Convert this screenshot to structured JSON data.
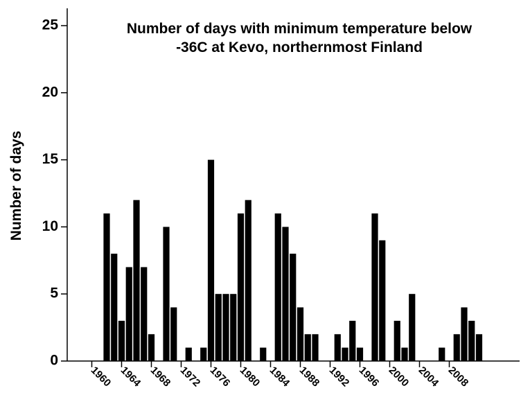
{
  "chart_data": {
    "type": "bar",
    "title": "Number of days with minimum temperature below -36C at Kevo, northernmost Finland",
    "title_lines": [
      "Number of days with minimum temperature below",
      "-36C at Kevo, northernmost Finland"
    ],
    "ylabel": "Number of days",
    "categories": [
      "1960",
      null,
      null,
      null,
      "1964",
      null,
      null,
      null,
      "1968",
      null,
      null,
      null,
      "1972",
      null,
      null,
      null,
      "1976",
      null,
      null,
      null,
      "1980",
      null,
      null,
      null,
      "1984",
      null,
      null,
      null,
      "1988",
      null,
      null,
      null,
      "1992",
      null,
      null,
      null,
      "1996",
      null,
      null,
      null,
      "2000",
      null,
      null,
      null,
      "2004",
      null,
      null,
      null,
      "2008",
      null,
      null,
      null,
      null
    ],
    "values": [
      0,
      0,
      11,
      8,
      3,
      7,
      12,
      7,
      2,
      0,
      10,
      4,
      0,
      1,
      0,
      1,
      15,
      5,
      5,
      5,
      11,
      12,
      0,
      1,
      0,
      11,
      10,
      8,
      4,
      2,
      2,
      0,
      0,
      2,
      1,
      3,
      1,
      0,
      11,
      9,
      0,
      3,
      1,
      5,
      0,
      0,
      0,
      1,
      0,
      2,
      4,
      3,
      2
    ],
    "color": "#000000",
    "ylim": [
      0,
      25
    ],
    "yticks": [
      0,
      5,
      10,
      15,
      20,
      25
    ],
    "grid": false
  }
}
